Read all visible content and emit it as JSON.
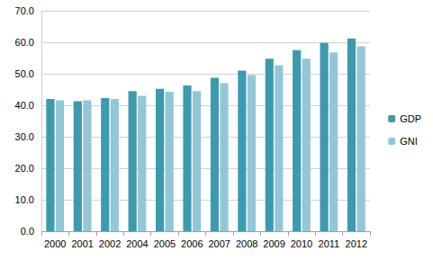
{
  "chart_data": {
    "type": "bar",
    "categories": [
      "2000",
      "2001",
      "2002",
      "2004",
      "2005",
      "2006",
      "2007",
      "2008",
      "2009",
      "2010",
      "2011",
      "2012"
    ],
    "series": [
      {
        "name": "GDP",
        "color": "#3d9aae",
        "values": [
          42.0,
          41.3,
          42.3,
          44.5,
          45.2,
          46.3,
          48.7,
          51.0,
          54.8,
          57.5,
          59.8,
          61.2
        ]
      },
      {
        "name": "GNI",
        "color": "#93c6d6",
        "values": [
          41.6,
          41.6,
          42.0,
          43.0,
          44.3,
          44.5,
          47.0,
          49.6,
          52.7,
          54.8,
          56.8,
          58.7
        ]
      }
    ],
    "ylim": [
      0,
      70
    ],
    "yticks": [
      {
        "value": 0,
        "label": "0.0"
      },
      {
        "value": 10,
        "label": "10.0"
      },
      {
        "value": 20,
        "label": "20.0"
      },
      {
        "value": 30,
        "label": "30.0"
      },
      {
        "value": 40,
        "label": "40.0"
      },
      {
        "value": 50,
        "label": "50.0"
      },
      {
        "value": 60,
        "label": "60.0"
      },
      {
        "value": 70,
        "label": "70.0"
      }
    ],
    "grid": true,
    "legend": "right"
  }
}
